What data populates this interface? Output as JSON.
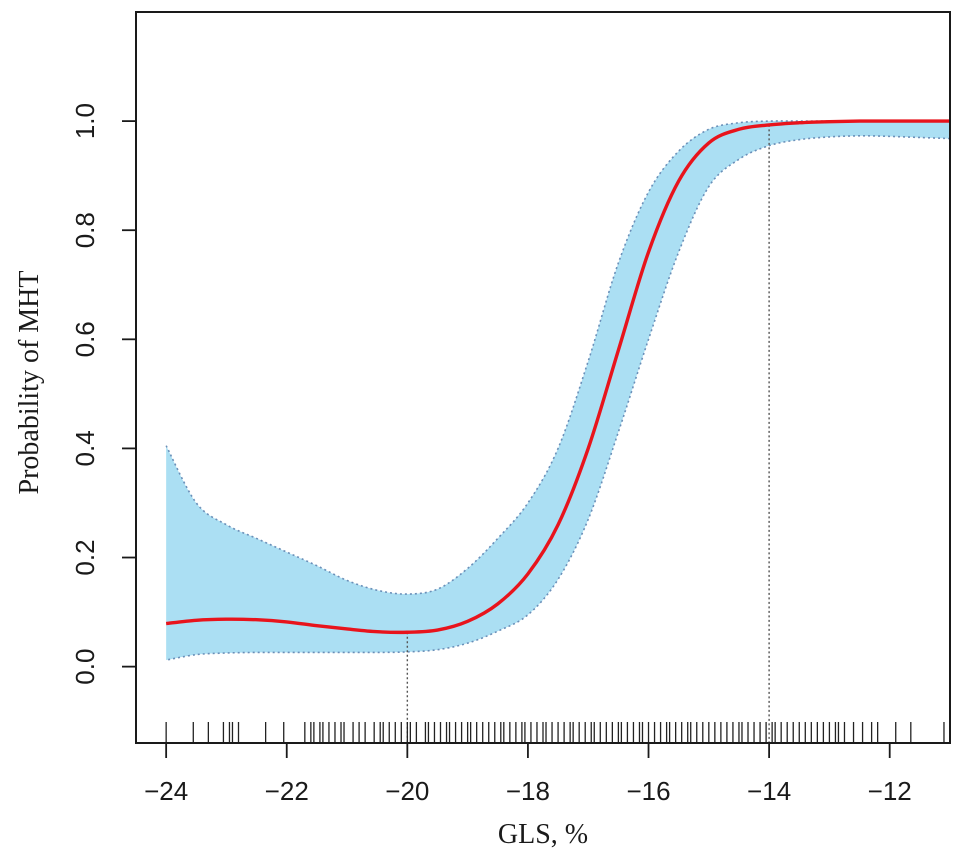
{
  "chart_data": {
    "type": "line",
    "title": "",
    "xlabel": "GLS,  %",
    "ylabel": "Probability of MHT",
    "xlim": [
      -24.5,
      -11.0
    ],
    "ylim": [
      -0.14,
      1.2
    ],
    "x_ticks": [
      -24,
      -22,
      -20,
      -18,
      -16,
      -14,
      -12
    ],
    "x_tick_labels": [
      "−24",
      "−22",
      "−20",
      "−18",
      "−16",
      "−14",
      "−12"
    ],
    "y_ticks": [
      0.0,
      0.2,
      0.4,
      0.6,
      0.8,
      1.0
    ],
    "y_tick_labels": [
      "0.0",
      "0.2",
      "0.4",
      "0.6",
      "0.8",
      "1.0"
    ],
    "grid": false,
    "colors": {
      "curve": "#e8141c",
      "band_fill": "#abdff3",
      "band_edge": "#6a8fb8",
      "reference_line": "#555555",
      "rug": "#222222",
      "axis": "#1a1a1a"
    },
    "series": [
      {
        "x": [
          -24,
          -23.5,
          -23,
          -22.5,
          -22,
          -21.5,
          -21,
          -20.5,
          -20,
          -19.5,
          -19,
          -18.5,
          -18,
          -17.5,
          -17,
          -16.5,
          -16,
          -15.5,
          -15,
          -14.5,
          -14,
          -13.5,
          -13,
          -12.5,
          -12,
          -11.5,
          -11
        ],
        "y": [
          0.079,
          0.085,
          0.087,
          0.086,
          0.082,
          0.075,
          0.069,
          0.064,
          0.063,
          0.067,
          0.083,
          0.115,
          0.17,
          0.26,
          0.4,
          0.58,
          0.76,
          0.89,
          0.96,
          0.985,
          0.993,
          0.997,
          0.999,
          1.0,
          1.0,
          1.0,
          1.0
        ]
      }
    ],
    "confidence_band": {
      "x": [
        -24,
        -23.5,
        -23,
        -22.5,
        -22,
        -21.5,
        -21,
        -20.5,
        -20,
        -19.5,
        -19,
        -18.5,
        -18,
        -17.5,
        -17,
        -16.5,
        -16,
        -15.5,
        -15,
        -14.5,
        -14,
        -13.5,
        -13,
        -12.5,
        -12,
        -11.5,
        -11
      ],
      "lower": [
        0.012,
        0.022,
        0.025,
        0.026,
        0.026,
        0.026,
        0.026,
        0.026,
        0.027,
        0.031,
        0.043,
        0.065,
        0.095,
        0.16,
        0.27,
        0.43,
        0.6,
        0.76,
        0.88,
        0.93,
        0.955,
        0.966,
        0.971,
        0.973,
        0.972,
        0.97,
        0.968
      ],
      "upper": [
        0.405,
        0.3,
        0.26,
        0.235,
        0.21,
        0.185,
        0.158,
        0.14,
        0.133,
        0.142,
        0.18,
        0.235,
        0.3,
        0.4,
        0.56,
        0.74,
        0.87,
        0.945,
        0.985,
        0.997,
        1.0,
        1.0,
        1.0,
        1.0,
        1.0,
        1.0,
        1.0
      ]
    },
    "reference_lines_x": [
      -20,
      -14
    ],
    "rug_x": [
      -24.0,
      -23.55,
      -23.3,
      -23.05,
      -22.95,
      -22.9,
      -22.8,
      -22.35,
      -22.05,
      -21.7,
      -21.6,
      -21.55,
      -21.45,
      -21.4,
      -21.3,
      -21.2,
      -21.1,
      -21.05,
      -20.9,
      -20.8,
      -20.7,
      -20.55,
      -20.45,
      -20.4,
      -20.3,
      -20.2,
      -20.1,
      -20.0,
      -19.95,
      -19.85,
      -19.7,
      -19.65,
      -19.55,
      -19.45,
      -19.35,
      -19.3,
      -19.2,
      -19.1,
      -19.0,
      -18.95,
      -18.85,
      -18.75,
      -18.65,
      -18.55,
      -18.45,
      -18.4,
      -18.3,
      -18.2,
      -18.1,
      -18.05,
      -17.95,
      -17.85,
      -17.75,
      -17.7,
      -17.6,
      -17.5,
      -17.4,
      -17.3,
      -17.25,
      -17.15,
      -17.05,
      -16.95,
      -16.9,
      -16.8,
      -16.7,
      -16.6,
      -16.5,
      -16.45,
      -16.35,
      -16.25,
      -16.15,
      -16.1,
      -16.0,
      -15.9,
      -15.8,
      -15.7,
      -15.65,
      -15.55,
      -15.45,
      -15.35,
      -15.3,
      -15.2,
      -15.1,
      -15.0,
      -14.9,
      -14.8,
      -14.7,
      -14.6,
      -14.5,
      -14.45,
      -14.35,
      -14.25,
      -14.15,
      -14.05,
      -13.95,
      -13.9,
      -13.8,
      -13.7,
      -13.6,
      -13.5,
      -13.4,
      -13.3,
      -13.2,
      -13.1,
      -13.0,
      -12.9,
      -12.85,
      -12.75,
      -12.6,
      -12.45,
      -12.3,
      -12.2,
      -11.9,
      -11.65,
      -11.1
    ]
  }
}
